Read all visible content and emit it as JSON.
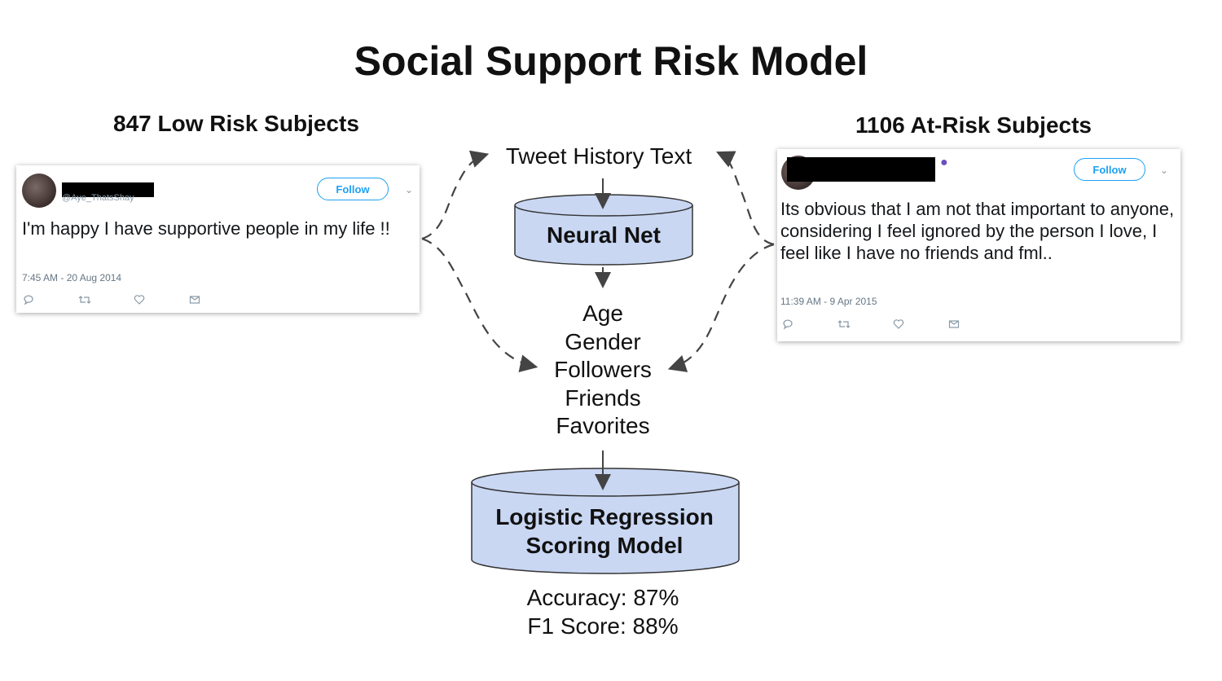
{
  "title": "Social Support Risk Model",
  "groups": {
    "low": "847 Low Risk Subjects",
    "risk": "1106 At-Risk Subjects"
  },
  "tweet_left": {
    "handle": "@Aye_ThatsShay",
    "follow": "Follow",
    "text": "I'm happy I have supportive people in my life !!",
    "time": "7:45 AM - 20 Aug 2014"
  },
  "tweet_right": {
    "follow": "Follow",
    "text": "Its obvious that I am not that important to anyone, considering I feel ignored by the person I love, I feel like I have no friends and fml..",
    "time": "11:39 AM - 9 Apr 2015"
  },
  "flow": {
    "input": "Tweet History Text",
    "model1": "Neural Net",
    "features": [
      "Age",
      "Gender",
      "Followers",
      "Friends",
      "Favorites"
    ],
    "model2": "Logistic Regression Scoring Model",
    "metrics": [
      "Accuracy: 87%",
      "F1 Score: 88%"
    ]
  },
  "colors": {
    "cylinder_fill": "#c9d7f3",
    "follow_blue": "#1da1f2"
  },
  "icons": [
    "reply-icon",
    "retweet-icon",
    "like-icon",
    "message-icon",
    "chevron-down-icon",
    "whale-emoji-icon"
  ]
}
